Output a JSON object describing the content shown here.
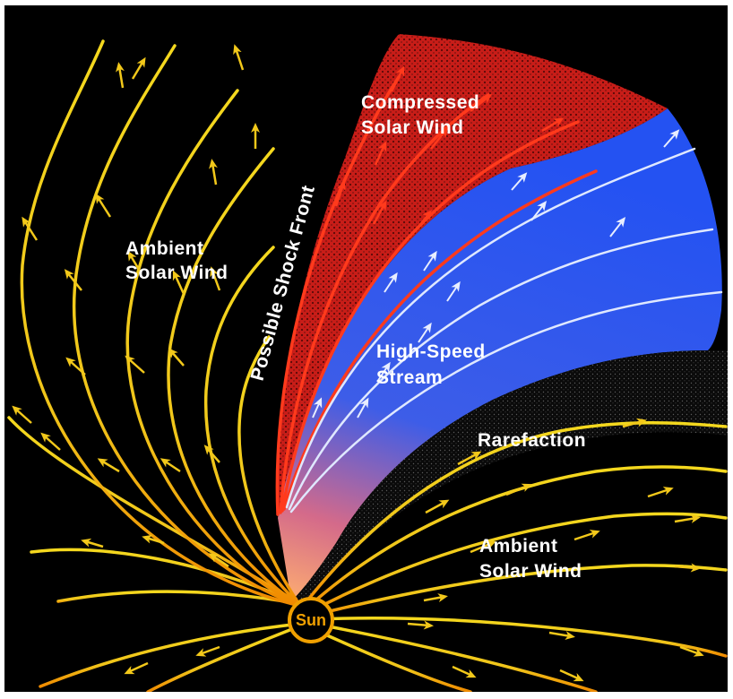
{
  "labels": {
    "compressed_line1": "Compressed",
    "compressed_line2": "Solar Wind",
    "ambient_left_line1": "Ambient",
    "ambient_left_line2": "Solar Wind",
    "shock_front": "Possible Shock Front",
    "high_speed_line1": "High-Speed",
    "high_speed_line2": "Stream",
    "rarefaction": "Rarefaction",
    "ambient_right_line1": "Ambient",
    "ambient_right_line2": "Solar Wind",
    "sun": "Sun"
  },
  "colors": {
    "background": "#000000",
    "field_lines": "#f2d21a",
    "compressed_region": "#d8241c",
    "compressed_lines": "#ff3a1c",
    "high_speed_region": "#2a5cf0",
    "stream_lines": "#dfe8ff",
    "sun": "#f0a000"
  }
}
